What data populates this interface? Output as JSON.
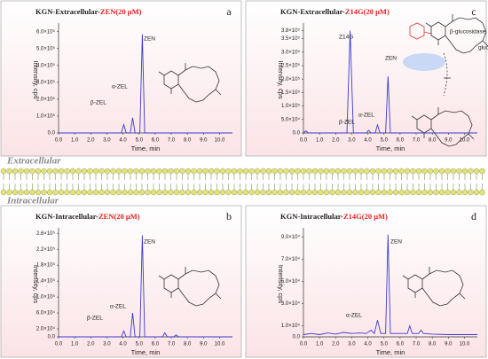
{
  "chart_data": [
    {
      "type": "line",
      "panel": "a",
      "title": "KGN-Extracellular-",
      "title_compound": "ZEN(20 μM)",
      "x_label": "Time, min",
      "y_label": "Intensity, cps",
      "color": "#3a3ad0",
      "x": [
        0,
        3.9,
        4.05,
        4.2,
        4.45,
        4.6,
        4.75,
        5.05,
        5.2,
        5.35,
        10.8
      ],
      "values": [
        0,
        0,
        50000,
        0,
        0,
        90000,
        0,
        0,
        585000,
        0,
        0
      ],
      "xlim": [
        0,
        10.8
      ],
      "ylim": [
        0,
        630000
      ],
      "xticks": [
        {
          "value": 0,
          "label": "0.0"
        },
        {
          "value": 1,
          "label": "1.0"
        },
        {
          "value": 2,
          "label": "2.0"
        },
        {
          "value": 3,
          "label": "3.0"
        },
        {
          "value": 4,
          "label": "4.0"
        },
        {
          "value": 5,
          "label": "5.0"
        },
        {
          "value": 6,
          "label": "6.0"
        },
        {
          "value": 7,
          "label": "7.0"
        },
        {
          "value": 8,
          "label": "8.0"
        },
        {
          "value": 9,
          "label": "9.0"
        },
        {
          "value": 10,
          "label": "10.0"
        }
      ],
      "yticks": [
        {
          "value": 0,
          "label": "0.0"
        },
        {
          "value": 100000,
          "label": "1.0×10⁵"
        },
        {
          "value": 200000,
          "label": "2.0×10⁵"
        },
        {
          "value": 300000,
          "label": "3.0×10⁵"
        },
        {
          "value": 400000,
          "label": "4.0×10⁵"
        },
        {
          "value": 500000,
          "label": "5.0×10⁵"
        },
        {
          "value": 600000,
          "label": "6.0×10⁵"
        }
      ],
      "annotations": [
        "ZEN",
        "α-ZEL",
        "β-ZEL"
      ]
    },
    {
      "type": "line",
      "panel": "c",
      "title": "KGN-Extracellular-",
      "title_compound": "Z14G(20 μM)",
      "x_label": "Time, min",
      "y_label": "Intensity, cps",
      "color": "#3a3ad0",
      "x": [
        0,
        0.15,
        0.3,
        2.7,
        2.9,
        3.1,
        3.9,
        4.05,
        4.2,
        4.45,
        4.6,
        4.75,
        5.1,
        5.25,
        5.4,
        10.8
      ],
      "values": [
        0,
        8000,
        0,
        0,
        380000,
        0,
        0,
        10000,
        0,
        0,
        30000,
        0,
        0,
        210000,
        0,
        0
      ],
      "xlim": [
        0,
        10.8
      ],
      "ylim": [
        0,
        395000
      ],
      "xticks": [
        {
          "value": 0,
          "label": "0.0"
        },
        {
          "value": 1,
          "label": "1.0"
        },
        {
          "value": 2,
          "label": "2.0"
        },
        {
          "value": 3,
          "label": "3.0"
        },
        {
          "value": 4,
          "label": "4.0"
        },
        {
          "value": 5,
          "label": "5.0"
        },
        {
          "value": 6,
          "label": "6.0"
        },
        {
          "value": 7,
          "label": "7.0"
        },
        {
          "value": 8,
          "label": "8.0"
        },
        {
          "value": 9,
          "label": "9.0"
        },
        {
          "value": 10,
          "label": "10.0"
        }
      ],
      "yticks": [
        {
          "value": 0,
          "label": "0.0"
        },
        {
          "value": 50000,
          "label": "5.0×10⁴"
        },
        {
          "value": 100000,
          "label": "1.0×10⁵"
        },
        {
          "value": 150000,
          "label": "1.5×10⁵"
        },
        {
          "value": 200000,
          "label": "2.0×10⁵"
        },
        {
          "value": 250000,
          "label": "2.5×10⁵"
        },
        {
          "value": 300000,
          "label": "3.0×10⁵"
        },
        {
          "value": 350000,
          "label": "3.5×10⁵"
        },
        {
          "value": 380000,
          "label": "3.8×10⁵"
        }
      ],
      "annotations": [
        "Z14G",
        "α-ZEL",
        "β-ZEL",
        "ZEN",
        "β-glucosidase",
        "glucose"
      ]
    },
    {
      "type": "line",
      "panel": "b",
      "title": "KGN-Intracellular-",
      "title_compound": "ZEN(20 μM)",
      "x_label": "Time, min",
      "y_label": "Intensity, cps",
      "color": "#3a3ad0",
      "x": [
        0,
        3.9,
        4.05,
        4.2,
        4.45,
        4.6,
        4.75,
        5.05,
        5.2,
        5.35,
        6.45,
        6.6,
        6.75,
        7.15,
        7.3,
        7.45,
        10.8
      ],
      "values": [
        0,
        0,
        15000,
        0,
        0,
        60000,
        0,
        0,
        255000,
        0,
        0,
        10000,
        0,
        0,
        5000,
        0,
        0
      ],
      "xlim": [
        0,
        10.8
      ],
      "ylim": [
        0,
        265000
      ],
      "xticks": [
        {
          "value": 0,
          "label": "0.0"
        },
        {
          "value": 1,
          "label": "1.0"
        },
        {
          "value": 2,
          "label": "2.0"
        },
        {
          "value": 3,
          "label": "3.0"
        },
        {
          "value": 4,
          "label": "4.0"
        },
        {
          "value": 5,
          "label": "5.0"
        },
        {
          "value": 6,
          "label": "6.0"
        },
        {
          "value": 7,
          "label": "7.0"
        },
        {
          "value": 8,
          "label": "8.0"
        },
        {
          "value": 9,
          "label": "9.0"
        },
        {
          "value": 10,
          "label": "10.0"
        }
      ],
      "yticks": [
        {
          "value": 0,
          "label": "0.0"
        },
        {
          "value": 20000,
          "label": "2.0×10⁴"
        },
        {
          "value": 60000,
          "label": "6.0×10⁴"
        },
        {
          "value": 100000,
          "label": "1.0×10⁵"
        },
        {
          "value": 140000,
          "label": "1.4×10⁵"
        },
        {
          "value": 180000,
          "label": "1.8×10⁵"
        },
        {
          "value": 220000,
          "label": "2.2×10⁵"
        },
        {
          "value": 260000,
          "label": "2.6×10⁵"
        }
      ],
      "annotations": [
        "ZEN",
        "α-ZEL",
        "β-ZEL"
      ]
    },
    {
      "type": "line",
      "panel": "d",
      "title": "KGN-Intracellular-",
      "title_compound": "Z14G(20 μM)",
      "x_label": "Time, min",
      "y_label": "Intensity, cps",
      "color": "#3a3ad0",
      "x": [
        0,
        0.5,
        1,
        1.5,
        2,
        2.5,
        3,
        3.5,
        3.9,
        4.2,
        4.4,
        4.6,
        4.8,
        5.1,
        5.25,
        5.4,
        6,
        6.45,
        6.6,
        6.75,
        7.15,
        7.3,
        7.45,
        8,
        9,
        10,
        10.8
      ],
      "values": [
        2000,
        3000,
        2000,
        3500,
        2500,
        4000,
        3000,
        3500,
        3000,
        6000,
        3000,
        15000,
        3000,
        3000,
        92000,
        3000,
        3000,
        3000,
        10000,
        3000,
        3000,
        6000,
        3000,
        2500,
        2000,
        2000,
        2000
      ],
      "xlim": [
        0,
        10.8
      ],
      "ylim": [
        0,
        95000
      ],
      "xticks": [
        {
          "value": 0,
          "label": "0.0"
        },
        {
          "value": 1,
          "label": "1.0"
        },
        {
          "value": 2,
          "label": "2.0"
        },
        {
          "value": 3,
          "label": "3.0"
        },
        {
          "value": 4,
          "label": "4.0"
        },
        {
          "value": 5,
          "label": "5.0"
        },
        {
          "value": 6,
          "label": "6.0"
        },
        {
          "value": 7,
          "label": "7.0"
        },
        {
          "value": 8,
          "label": "8.0"
        },
        {
          "value": 9,
          "label": "9.0"
        },
        {
          "value": 10,
          "label": "10.0"
        }
      ],
      "yticks": [
        {
          "value": 0,
          "label": "0.0"
        },
        {
          "value": 10000,
          "label": "1.0×10⁴"
        },
        {
          "value": 30000,
          "label": "3.0×10⁴"
        },
        {
          "value": 50000,
          "label": "5.0×10⁴"
        },
        {
          "value": 70000,
          "label": "7.0×10⁴"
        },
        {
          "value": 90000,
          "label": "9.0×10⁴"
        }
      ],
      "annotations": [
        "ZEN",
        "α-ZEL"
      ]
    }
  ],
  "membrane": {
    "top_label": "Extracellular",
    "bottom_label": "Intracellular"
  }
}
